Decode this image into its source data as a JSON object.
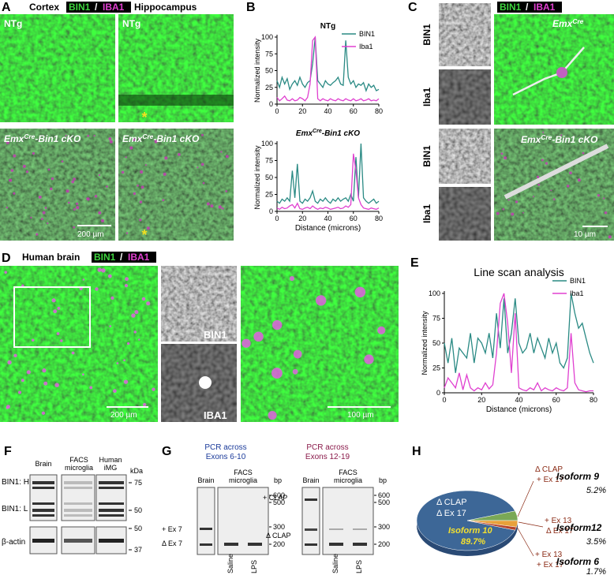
{
  "panel_a": {
    "letter": "A",
    "header_left": "Cortex",
    "channel_1": "BIN1",
    "slash": "/",
    "channel_2": "IBA1",
    "header_right": "Hippocampus",
    "ntg_1": "NTg",
    "ntg_2": "NTg",
    "cko_1": {
      "base": "Emx",
      "sup": "Cre",
      "rest": "-Bin1 cKO"
    },
    "cko_2": {
      "base": "Emx",
      "sup": "Cre",
      "rest": "-Bin1 cKO"
    },
    "scale": "200 µm",
    "asterisk_1": "*",
    "asterisk_2": "*"
  },
  "panel_b": {
    "letter": "B"
  },
  "panel_c": {
    "letter": "C",
    "channel_1": "BIN1",
    "slash": "/",
    "channel_2": "IBA1",
    "rows": [
      "BIN1",
      "Iba1",
      "BIN1",
      "Iba1"
    ],
    "top_label": {
      "base": "Emx",
      "sup": "Cre",
      "rest": ""
    },
    "bottom_label": {
      "base": "Emx",
      "sup": "Cre",
      "rest": "-Bin1 cKO"
    },
    "scale": "10 µm"
  },
  "panel_d": {
    "letter": "D",
    "header": "Human brain",
    "channel_1": "BIN1",
    "slash": "/",
    "channel_2": "IBA1",
    "scale_left": "200 µm",
    "mid_top": "BIN1",
    "mid_bottom": "IBA1",
    "scale_right": "100 µm"
  },
  "panel_e": {
    "letter": "E"
  },
  "panel_f": {
    "letter": "F",
    "columns": [
      [
        "Brain"
      ],
      [
        "FACS",
        "microglia"
      ],
      [
        "Human",
        "iMG"
      ]
    ],
    "unit": "kDa",
    "rows": [
      "BIN1: H",
      "BIN1: L",
      "β-actin"
    ],
    "markers": [
      75,
      50,
      50,
      37
    ]
  },
  "panel_g": {
    "letter": "G",
    "gels": [
      {
        "title": [
          "PCR across",
          "Exons 6-10"
        ],
        "brain": "Brain",
        "facs": [
          "FACS",
          "microglia"
        ],
        "unit": "bp",
        "markers": [
          600,
          500,
          300,
          200
        ],
        "bands": [
          "+ Ex 7",
          "Δ Ex 7"
        ],
        "lanes": [
          "Saline",
          "LPS"
        ]
      },
      {
        "title": [
          "PCR across",
          "Exons 12-19"
        ],
        "brain": "Brain",
        "facs": [
          "FACS",
          "microglia"
        ],
        "unit": "bp",
        "markers": [
          600,
          500,
          300,
          200
        ],
        "bands": [
          "+ CLAP",
          "Δ CLAP"
        ],
        "lanes": [
          "Saline",
          "LPS"
        ]
      }
    ]
  },
  "panel_h": {
    "letter": "H"
  },
  "chart_data": [
    {
      "type": "line",
      "title": "NTg",
      "y_label": "Normalized intensity",
      "legend": "upper right",
      "x": [
        0,
        2,
        4,
        6,
        8,
        10,
        12,
        14,
        16,
        18,
        20,
        22,
        24,
        26,
        28,
        30,
        32,
        34,
        36,
        38,
        40,
        42,
        44,
        46,
        48,
        50,
        52,
        54,
        56,
        58,
        60,
        62,
        64,
        66,
        68,
        70,
        72,
        74,
        76,
        78,
        80
      ],
      "xlim": [
        0,
        80
      ],
      "ylim": [
        0,
        100
      ],
      "xticks": [
        0,
        20,
        40,
        60,
        80
      ],
      "yticks": [
        0,
        25,
        50,
        75,
        100
      ],
      "series": [
        {
          "name": "BIN1",
          "color": "#2a8a84",
          "values": [
            35,
            25,
            40,
            30,
            38,
            22,
            30,
            35,
            28,
            40,
            30,
            25,
            32,
            35,
            60,
            100,
            35,
            30,
            25,
            35,
            30,
            28,
            32,
            35,
            40,
            30,
            28,
            95,
            40,
            30,
            35,
            25,
            30,
            28,
            32,
            20,
            30,
            25,
            28,
            20,
            22
          ]
        },
        {
          "name": "Iba1",
          "color": "#e040d0",
          "values": [
            10,
            5,
            8,
            12,
            6,
            5,
            8,
            5,
            6,
            10,
            8,
            5,
            10,
            30,
            95,
            100,
            8,
            5,
            8,
            6,
            5,
            8,
            6,
            5,
            8,
            6,
            5,
            8,
            6,
            5,
            8,
            5,
            6,
            8,
            5,
            6,
            8,
            5,
            6,
            5,
            8
          ]
        }
      ]
    },
    {
      "type": "line",
      "title": {
        "base": "Emx",
        "sup": "Cre",
        "rest": "-Bin1 cKO"
      },
      "y_label": "Normalized intensity",
      "x_label": "Distance (microns)",
      "x": [
        0,
        2,
        4,
        6,
        8,
        10,
        12,
        14,
        16,
        18,
        20,
        22,
        24,
        26,
        28,
        30,
        32,
        34,
        36,
        38,
        40,
        42,
        44,
        46,
        48,
        50,
        52,
        54,
        56,
        58,
        60,
        62,
        64,
        66,
        68,
        70,
        72,
        74,
        76,
        78,
        80
      ],
      "xlim": [
        0,
        80
      ],
      "ylim": [
        0,
        100
      ],
      "xticks": [
        0,
        20,
        40,
        60,
        80
      ],
      "yticks": [
        0,
        25,
        50,
        75,
        100
      ],
      "series": [
        {
          "color": "#2a8a84",
          "values": [
            15,
            12,
            18,
            15,
            20,
            15,
            60,
            20,
            70,
            15,
            12,
            18,
            15,
            20,
            30,
            15,
            12,
            18,
            15,
            20,
            15,
            12,
            18,
            15,
            20,
            15,
            18,
            20,
            15,
            25,
            15,
            80,
            20,
            100,
            20,
            15,
            12,
            15,
            18,
            12,
            15
          ]
        },
        {
          "color": "#e040d0",
          "values": [
            5,
            3,
            6,
            4,
            5,
            8,
            10,
            5,
            12,
            4,
            3,
            5,
            6,
            4,
            8,
            5,
            3,
            5,
            4,
            6,
            5,
            3,
            4,
            5,
            6,
            4,
            5,
            8,
            6,
            10,
            85,
            60,
            20,
            10,
            5,
            4,
            3,
            5,
            4,
            3,
            5
          ]
        }
      ]
    },
    {
      "type": "line",
      "title": "Line scan analysis",
      "y_label": "Normalized intensity",
      "x_label": "Distance (microns)",
      "legend": "upper right",
      "x": [
        0,
        2,
        4,
        6,
        8,
        10,
        12,
        14,
        16,
        18,
        20,
        22,
        24,
        26,
        28,
        30,
        32,
        34,
        36,
        38,
        40,
        42,
        44,
        46,
        48,
        50,
        52,
        54,
        56,
        58,
        60,
        62,
        64,
        66,
        68,
        70,
        72,
        74,
        76,
        78,
        80
      ],
      "xlim": [
        0,
        80
      ],
      "ylim": [
        0,
        100
      ],
      "xticks": [
        0,
        20,
        40,
        60,
        80
      ],
      "yticks": [
        0,
        25,
        50,
        75,
        100
      ],
      "series": [
        {
          "name": "BIN1",
          "color": "#2a8a84",
          "values": [
            50,
            30,
            55,
            20,
            45,
            40,
            35,
            60,
            30,
            55,
            50,
            40,
            60,
            35,
            80,
            45,
            95,
            40,
            60,
            95,
            50,
            40,
            45,
            60,
            40,
            55,
            45,
            35,
            55,
            40,
            50,
            30,
            25,
            35,
            100,
            80,
            65,
            70,
            55,
            40,
            30
          ]
        },
        {
          "name": "Iba1",
          "color": "#e040d0",
          "values": [
            5,
            15,
            10,
            5,
            20,
            3,
            18,
            5,
            2,
            5,
            3,
            10,
            4,
            8,
            40,
            90,
            100,
            70,
            20,
            80,
            5,
            3,
            2,
            5,
            3,
            10,
            2,
            5,
            3,
            2,
            5,
            3,
            2,
            5,
            60,
            10,
            3,
            2,
            1,
            2,
            2
          ]
        }
      ]
    },
    {
      "type": "pie",
      "categories": [
        "Isoform 10",
        "Isoform 9",
        "Isoform12",
        "Isoform 6"
      ],
      "descriptions": [
        [
          "Δ CLAP",
          "Δ Ex 17"
        ],
        [
          "Δ CLAP",
          "+ Ex 17"
        ],
        [
          "+ Ex 13",
          "Δ Ex 17"
        ],
        [
          "+ Ex 13",
          "+ Ex 17"
        ]
      ],
      "values": [
        89.7,
        5.2,
        3.5,
        1.7
      ],
      "value_labels": [
        "89.7%",
        "5.2%",
        "3.5%",
        "1.7%"
      ],
      "colors": [
        "#3d6797",
        "#7aa856",
        "#e8a13a",
        "#b5432a"
      ]
    }
  ]
}
